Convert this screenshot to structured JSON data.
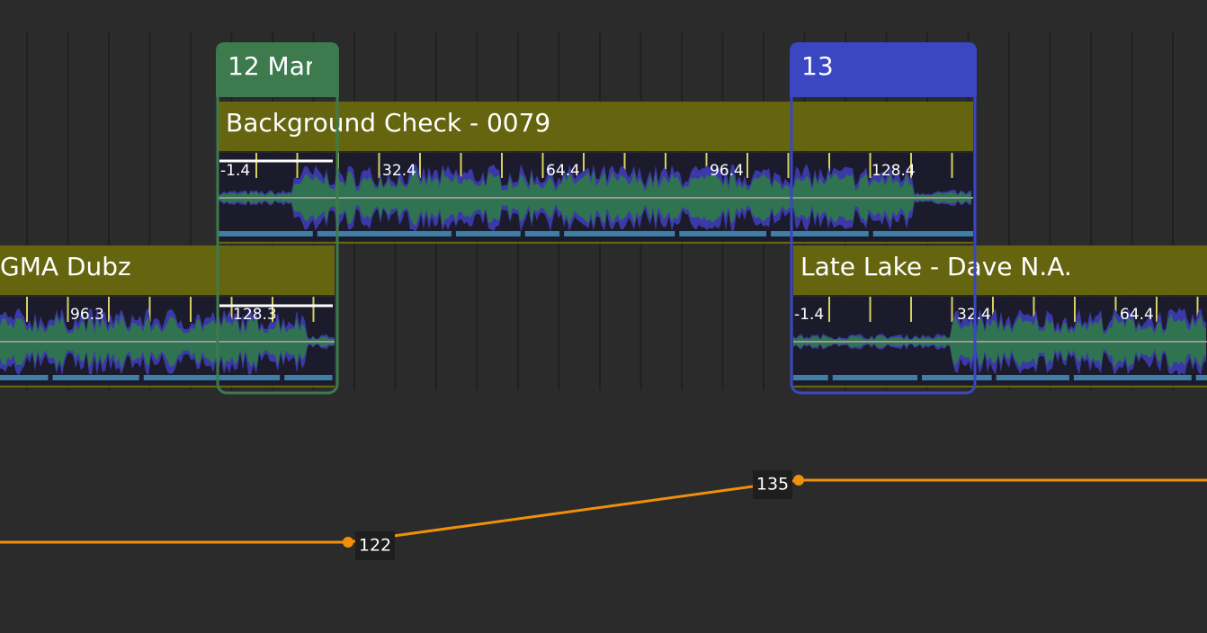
{
  "markers": [
    {
      "label": "12 Mar"
    },
    {
      "label": "13"
    }
  ],
  "tracks": [
    {
      "title": "Background Check - 0079",
      "beats": [
        "-1.4",
        "32.4",
        "64.4",
        "96.4",
        "128.4"
      ]
    },
    {
      "title": "GMA Dubz",
      "beats": [
        "96.3",
        "128.3"
      ]
    },
    {
      "title": "Late Lake - Dave N.A.",
      "beats": [
        "-1.4",
        "32.4",
        "64.4"
      ]
    }
  ],
  "tempo": {
    "points": [
      122,
      135
    ]
  }
}
